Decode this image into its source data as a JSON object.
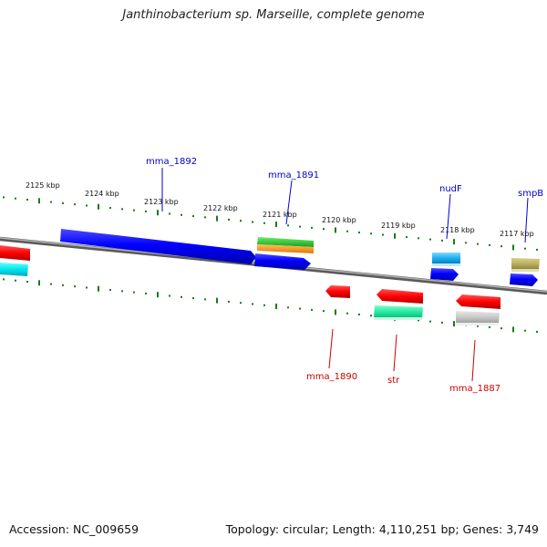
{
  "title": "Janthinobacterium sp. Marseille, complete genome",
  "footer": {
    "accession": "Accession: NC_009659",
    "summary": "Topology: circular; Length: 4,110,251 bp; Genes: 3,749"
  },
  "scale_labels": [
    "2125 kbp",
    "2124 kbp",
    "2123 kbp",
    "2122 kbp",
    "2121 kbp",
    "2120 kbp",
    "2119 kbp",
    "2118 kbp",
    "2117 kbp"
  ],
  "gene_labels": {
    "mma_1892": "mma_1892",
    "mma_1891": "mma_1891",
    "nudF": "nudF",
    "smpB": "smpB",
    "mma_1890": "mma_1890",
    "str": "str",
    "mma_1887": "mma_1887"
  },
  "colors": {
    "forward_label": "#0000cc",
    "reverse_label": "#cc0000",
    "backbone": "#808080",
    "ticks": "#1a7a1a"
  }
}
